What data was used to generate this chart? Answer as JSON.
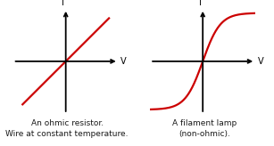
{
  "background_color": "#ffffff",
  "left_label": "An ohmic resistor.\nWire at constant temperature.",
  "right_label": "A filament lamp\n(non-ohmic).",
  "label_fontsize": 6.5,
  "curve_color": "#cc0000",
  "axis_color": "#000000",
  "axis_label_I": "I",
  "axis_label_V": "V",
  "axis_lw": 1.3,
  "curve_lw": 1.6
}
